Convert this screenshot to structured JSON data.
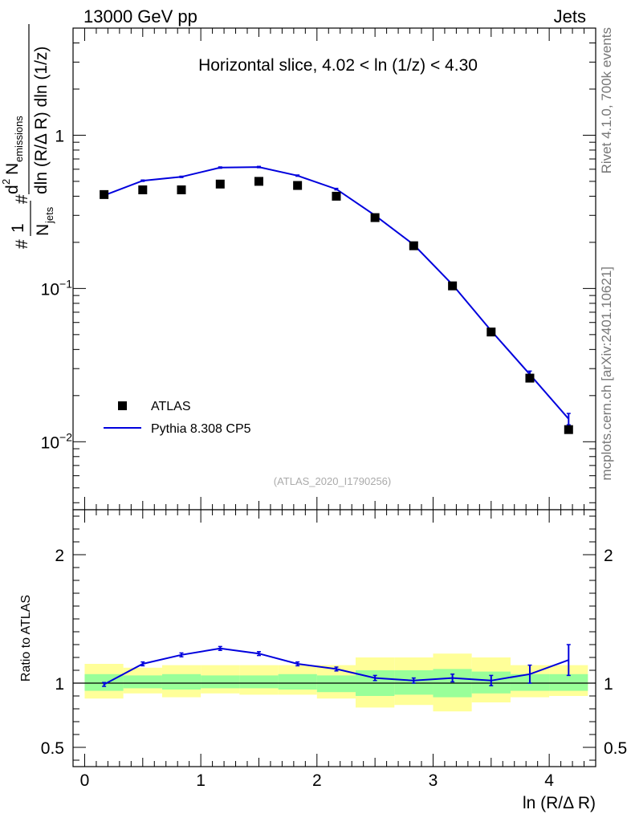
{
  "header": {
    "energy_label": "13000 GeV pp",
    "category": "Jets"
  },
  "side_labels": {
    "rivet": "Rivet 4.1.0,  700k events",
    "mcplots": "mcplots.cern.ch [arXiv:2401.10621]"
  },
  "chart_data": [
    {
      "type": "line",
      "panel": "main",
      "title": "Horizontal slice, 4.02 < ln (1/z) < 4.30",
      "watermark": "(ATLAS_2020_I1790256)",
      "xlabel": "ln (R/Δ R)",
      "ylabel": "1/N_jets d²N_emissions / dln (R/Δ R) dln (1/z)",
      "yscale": "log",
      "xlim": [
        -0.1,
        4.4
      ],
      "ylim": [
        0.0036,
        5.0
      ],
      "y_tick_labels": [
        {
          "value": 1,
          "base": "1",
          "exp": ""
        },
        {
          "value": 0.1,
          "base": "10",
          "exp": "−1"
        },
        {
          "value": 0.01,
          "base": "10",
          "exp": "−2"
        }
      ],
      "series": [
        {
          "name": "ATLAS",
          "style": "markers",
          "color": "#000000",
          "x": [
            0.167,
            0.5,
            0.833,
            1.167,
            1.5,
            1.833,
            2.167,
            2.5,
            2.833,
            3.167,
            3.5,
            3.833,
            4.167
          ],
          "y": [
            0.41,
            0.44,
            0.44,
            0.48,
            0.5,
            0.47,
            0.4,
            0.29,
            0.19,
            0.104,
            0.052,
            0.026,
            0.012
          ]
        },
        {
          "name": "Pythia 8.308 CP5",
          "style": "line",
          "color": "#0000dd",
          "x": [
            0.167,
            0.5,
            0.833,
            1.167,
            1.5,
            1.833,
            2.167,
            2.5,
            2.833,
            3.167,
            3.5,
            3.833,
            4.167
          ],
          "y": [
            0.405,
            0.505,
            0.535,
            0.615,
            0.62,
            0.545,
            0.445,
            0.3,
            0.193,
            0.106,
            0.053,
            0.0275,
            0.0141
          ],
          "err": [
            0.004,
            0.005,
            0.005,
            0.006,
            0.006,
            0.005,
            0.005,
            0.003,
            0.002,
            0.0012,
            0.0008,
            0.0014,
            0.0012
          ]
        }
      ]
    },
    {
      "type": "line",
      "panel": "ratio",
      "xlabel": "ln (R/Δ R)",
      "ylabel": "Ratio to ATLAS",
      "xlim": [
        -0.1,
        4.4
      ],
      "ylim": [
        0.35,
        2.35
      ],
      "x_ticks": [
        0,
        1,
        2,
        3,
        4
      ],
      "y_ticks": [
        0.5,
        1,
        2
      ],
      "bands": {
        "bin_edges": [
          0.0,
          0.333,
          0.667,
          1.0,
          1.333,
          1.667,
          2.0,
          2.333,
          2.667,
          3.0,
          3.333,
          3.667,
          4.0,
          4.333
        ],
        "total_lo": [
          0.88,
          0.92,
          0.89,
          0.92,
          0.91,
          0.91,
          0.88,
          0.81,
          0.83,
          0.78,
          0.85,
          0.89,
          0.9
        ],
        "total_hi": [
          1.15,
          1.12,
          1.14,
          1.14,
          1.14,
          1.14,
          1.14,
          1.2,
          1.2,
          1.23,
          1.2,
          1.14,
          1.14
        ],
        "stat_lo": [
          0.94,
          0.96,
          0.95,
          0.96,
          0.96,
          0.95,
          0.93,
          0.9,
          0.91,
          0.89,
          0.92,
          0.94,
          0.94
        ],
        "stat_hi": [
          1.07,
          1.06,
          1.07,
          1.06,
          1.06,
          1.07,
          1.06,
          1.1,
          1.1,
          1.11,
          1.09,
          1.07,
          1.07
        ],
        "total_color": "#ffff99",
        "stat_color": "#99ff99"
      },
      "series": [
        {
          "name": "Pythia 8.308 CP5 / ATLAS",
          "color": "#0000dd",
          "x": [
            0.167,
            0.5,
            0.833,
            1.167,
            1.5,
            1.833,
            2.167,
            2.5,
            2.833,
            3.167,
            3.5,
            3.833,
            4.167
          ],
          "y": [
            0.99,
            1.15,
            1.22,
            1.27,
            1.23,
            1.15,
            1.11,
            1.04,
            1.02,
            1.04,
            1.02,
            1.07,
            1.18
          ],
          "err": [
            0.015,
            0.015,
            0.015,
            0.015,
            0.015,
            0.015,
            0.015,
            0.02,
            0.02,
            0.03,
            0.04,
            0.07,
            0.12
          ]
        }
      ]
    }
  ]
}
